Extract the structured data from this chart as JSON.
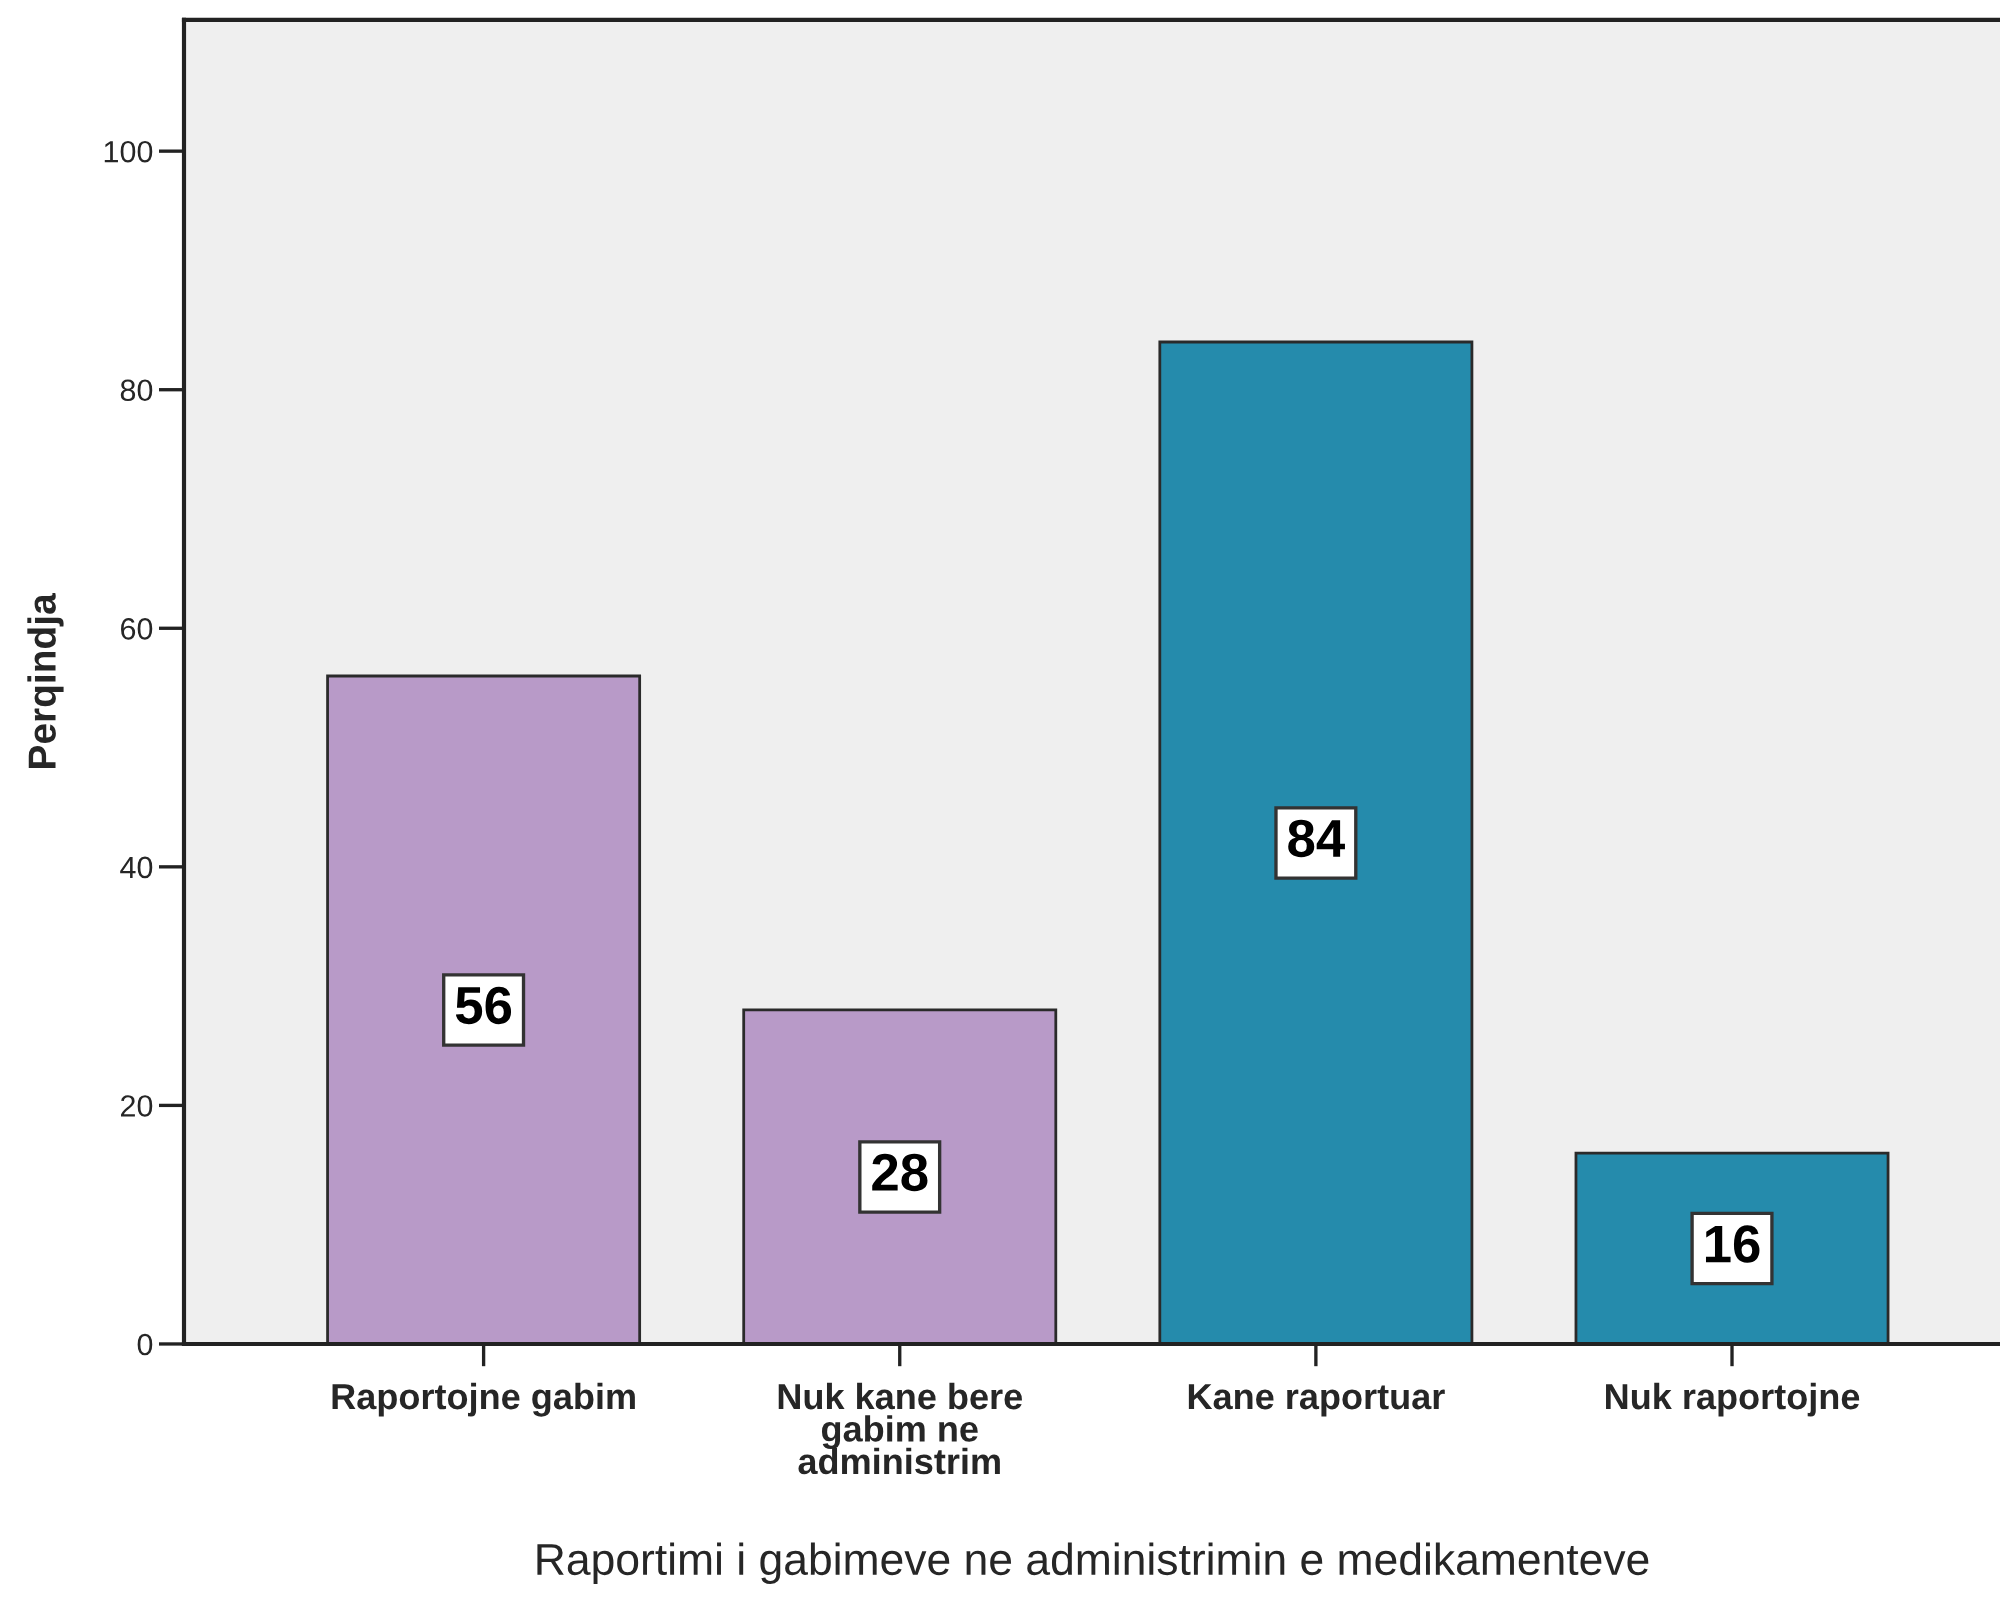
{
  "chart_data": {
    "type": "bar",
    "categories": [
      "Raportojne gabim",
      "Nuk kane bere gabim ne administrim",
      "Kane raportuar",
      "Nuk raportojne"
    ],
    "values": [
      56,
      28,
      84,
      16
    ],
    "colors": [
      "#b89ac8",
      "#b89ac8",
      "#258bac",
      "#258bac"
    ],
    "xlabel": "Raportimi i gabimeve ne administrimin e medikamenteve",
    "ylabel": "Perqindja",
    "ylim": [
      0,
      111
    ],
    "yticks": [
      0,
      20,
      40,
      60,
      80,
      100
    ],
    "grid": false,
    "data_labels": true
  }
}
